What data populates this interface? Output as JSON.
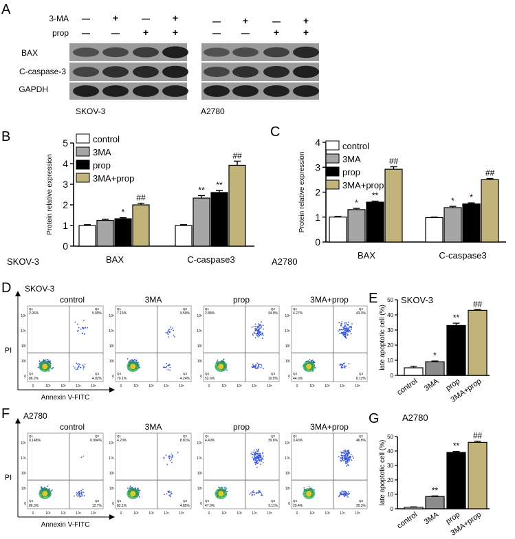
{
  "panels": {
    "A": {
      "letter": "A",
      "treatment_rows": [
        {
          "label": "3-MA",
          "signs": [
            "—",
            "+",
            "—",
            "+"
          ]
        },
        {
          "label": "prop",
          "signs": [
            "—",
            "—",
            "+",
            "+"
          ]
        }
      ],
      "proteins": [
        "BAX",
        "C-caspase-3",
        "GAPDH"
      ],
      "cell_lines": [
        "SKOV-3",
        "A2780"
      ]
    },
    "D": {
      "letter": "D",
      "cell_line": "SKOV-3"
    },
    "F": {
      "letter": "F",
      "cell_line": "A2780"
    }
  },
  "flow": {
    "group_titles": [
      "control",
      "3MA",
      "prop",
      "3MA+prop"
    ],
    "y_axis_label": "PI",
    "x_axis_label": "Annexin V-FITC",
    "tick_labels": [
      "0",
      "10²",
      "10³",
      "10⁴",
      "10⁵"
    ],
    "SKOV-3": [
      {
        "q1": "2.96%",
        "q2": "5.99%",
        "q3": "4.92%",
        "q4": "86.2%"
      },
      {
        "q1": "7.15%",
        "q2": "9.50%",
        "q3": "4.24%",
        "q4": "79.1%"
      },
      {
        "q1": "2.88%",
        "q2": "34.0%",
        "q3": "10.5%",
        "q4": "52.6%"
      },
      {
        "q1": "4.27%",
        "q2": "43.3%",
        "q3": "8.12%",
        "q4": "44.3%"
      }
    ],
    "A2780": [
      {
        "q1": "0.148%",
        "q2": "0.904%",
        "q3": "12.7%",
        "q4": "86.3%"
      },
      {
        "q1": "4.20%",
        "q2": "8.81%",
        "q3": "4.85%",
        "q4": "82.1%"
      },
      {
        "q1": "4.40%",
        "q2": "39.6%",
        "q3": "9.11%",
        "q4": "47.0%"
      },
      {
        "q1": "3.43%",
        "q2": "46.8%",
        "q3": "20.3%",
        "q4": "29.4%"
      }
    ]
  },
  "colors": {
    "control": "#ffffff",
    "3MA": "#a6a6a6",
    "prop": "#000000",
    "3MA+prop": "#c2b37b"
  },
  "chart_data": [
    {
      "panel": "B",
      "type": "bar",
      "cell_line": "SKOV-3",
      "ylabel": "Protein relative expression",
      "ylim": [
        0,
        5
      ],
      "yticks": [
        "0",
        "1",
        "2",
        "3",
        "4",
        "5"
      ],
      "categories": [
        "BAX",
        "C-caspase3"
      ],
      "legend": "top-left",
      "series": [
        {
          "name": "control",
          "values": [
            1.0,
            1.0
          ],
          "errors": [
            0.04,
            0.04
          ],
          "sig": [
            "",
            ""
          ]
        },
        {
          "name": "3MA",
          "values": [
            1.25,
            2.33
          ],
          "errors": [
            0.05,
            0.12
          ],
          "sig": [
            "",
            "**"
          ]
        },
        {
          "name": "prop",
          "values": [
            1.33,
            2.6
          ],
          "errors": [
            0.05,
            0.1
          ],
          "sig": [
            "*",
            "**"
          ]
        },
        {
          "name": "3MA+prop",
          "values": [
            2.0,
            3.92
          ],
          "errors": [
            0.08,
            0.2
          ],
          "sig": [
            "##",
            "##"
          ]
        }
      ]
    },
    {
      "panel": "C",
      "type": "bar",
      "cell_line": "A2780",
      "ylabel": "Protein relative expression",
      "ylim": [
        0,
        4
      ],
      "yticks": [
        "0",
        "1",
        "2",
        "3",
        "4"
      ],
      "categories": [
        "BAX",
        "C-caspase3"
      ],
      "legend": "top-left",
      "series": [
        {
          "name": "control",
          "values": [
            1.0,
            0.98
          ],
          "errors": [
            0.03,
            0.02
          ],
          "sig": [
            "",
            ""
          ]
        },
        {
          "name": "3MA",
          "values": [
            1.3,
            1.38
          ],
          "errors": [
            0.05,
            0.05
          ],
          "sig": [
            "*",
            "*"
          ]
        },
        {
          "name": "prop",
          "values": [
            1.6,
            1.53
          ],
          "errors": [
            0.04,
            0.04
          ],
          "sig": [
            "**",
            "*"
          ]
        },
        {
          "name": "3MA+prop",
          "values": [
            2.92,
            2.5
          ],
          "errors": [
            0.1,
            0.05
          ],
          "sig": [
            "##",
            "##"
          ]
        }
      ]
    },
    {
      "panel": "E",
      "type": "bar",
      "cell_line": "SKOV-3",
      "ylabel": "late apoptotic cell (%)",
      "ylim": [
        0,
        50
      ],
      "yticks": [
        "0",
        "10",
        "20",
        "30",
        "40",
        "50"
      ],
      "categories": [
        "control",
        "3MA",
        "prop",
        "3MA+prop"
      ],
      "values": [
        5.0,
        9.0,
        33.0,
        43.0
      ],
      "errors": [
        1.0,
        0.5,
        1.5,
        0.5
      ],
      "sig": [
        "",
        "*",
        "**",
        "##"
      ]
    },
    {
      "panel": "G",
      "type": "bar",
      "cell_line": "A2780",
      "ylabel": "late apoptotic cell (%)",
      "ylim": [
        0,
        50
      ],
      "yticks": [
        "0",
        "10",
        "20",
        "30",
        "40",
        "50"
      ],
      "categories": [
        "control",
        "3MA",
        "prop",
        "3MA+prop"
      ],
      "values": [
        1.0,
        8.5,
        39.0,
        46.0
      ],
      "errors": [
        0.3,
        0.4,
        0.7,
        0.8
      ],
      "sig": [
        "",
        "**",
        "**",
        "##"
      ]
    }
  ]
}
